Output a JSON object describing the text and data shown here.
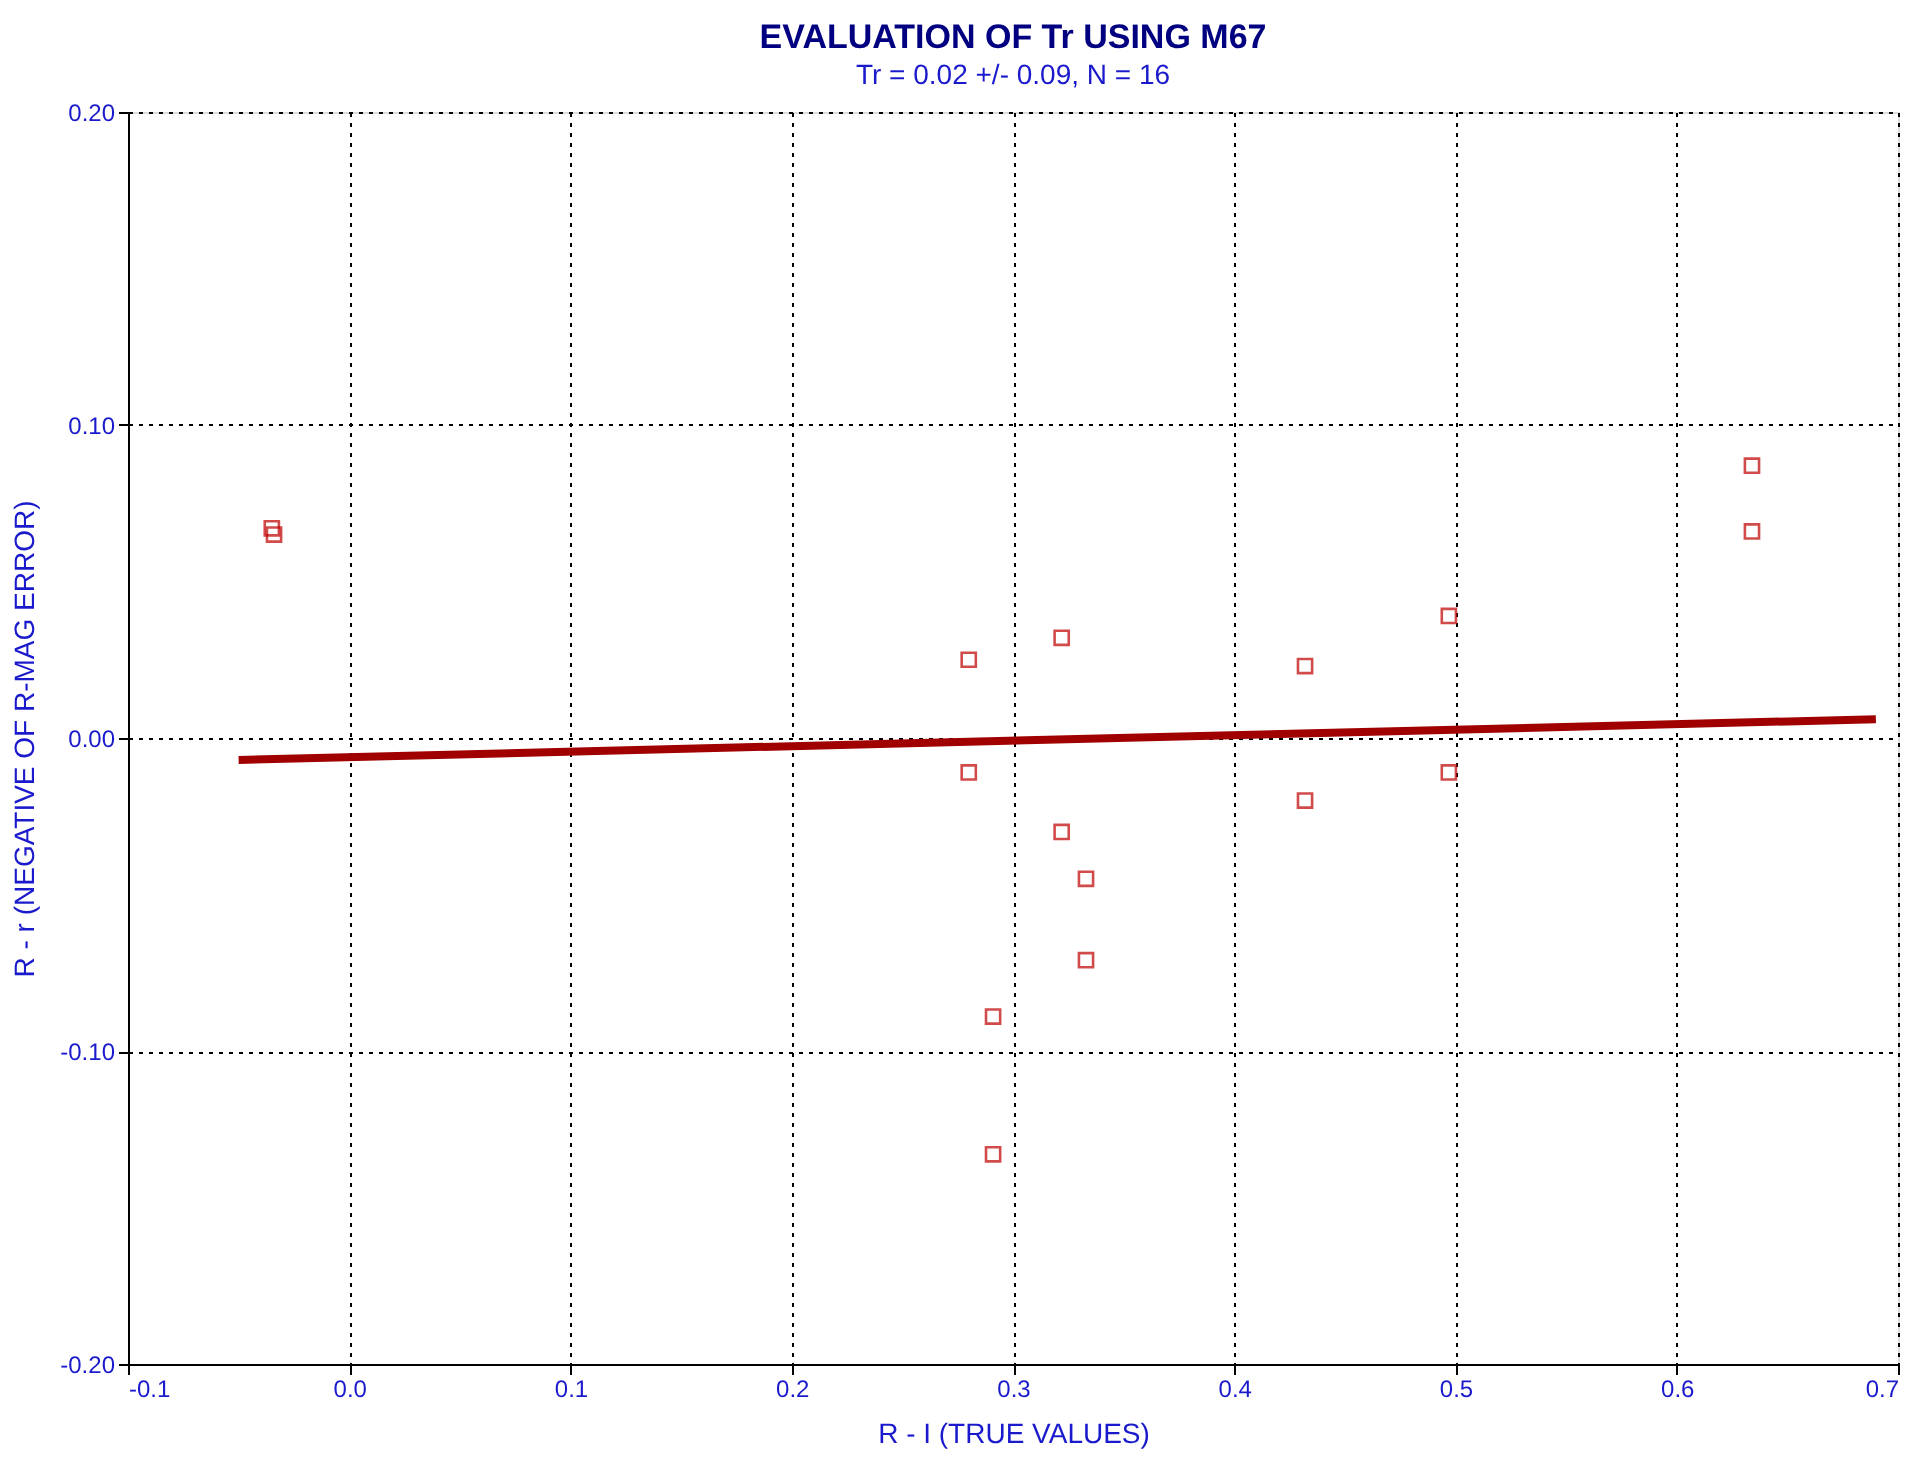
{
  "chart_data": {
    "type": "scatter",
    "title": "EVALUATION OF Tr USING M67",
    "subtitle": "Tr = 0.02 +/- 0.09, N = 16",
    "xlabel": "R - I (TRUE VALUES)",
    "ylabel": "R - r (NEGATIVE OF R-MAG ERROR)",
    "series": [
      {
        "marker": "square",
        "color": "#c00000",
        "x": [
          -0.035,
          -0.034,
          0.28,
          0.28,
          0.291,
          0.291,
          0.322,
          0.322,
          0.333,
          0.333,
          0.432,
          0.432,
          0.497,
          0.497,
          0.634,
          0.634
        ],
        "values": [
          0.067,
          0.065,
          0.025,
          -0.011,
          -0.089,
          -0.133,
          0.032,
          -0.03,
          -0.045,
          -0.071,
          0.023,
          -0.02,
          0.039,
          -0.011,
          0.087,
          0.066
        ]
      },
      {
        "type": "line",
        "marker": "none",
        "color": "#a00000",
        "x": [
          -0.05,
          0.69
        ],
        "values": [
          -0.007,
          0.006
        ]
      }
    ],
    "xlim": [
      -0.1,
      0.7
    ],
    "xticks": [
      -0.1,
      {
        "value": 0,
        "label": "0.0"
      },
      0.1,
      0.2,
      0.3,
      0.4,
      0.5,
      0.6,
      0.7
    ],
    "ylim": [
      -0.2,
      0.2
    ],
    "yticks": [
      {
        "value": -0.2,
        "label": "-0.20"
      },
      {
        "value": -0.1,
        "label": "-0.10"
      },
      {
        "value": 0,
        "label": "0.00"
      },
      {
        "value": 0.1,
        "label": "0.10"
      },
      {
        "value": 0.2,
        "label": "0.20"
      }
    ],
    "grid": true
  }
}
